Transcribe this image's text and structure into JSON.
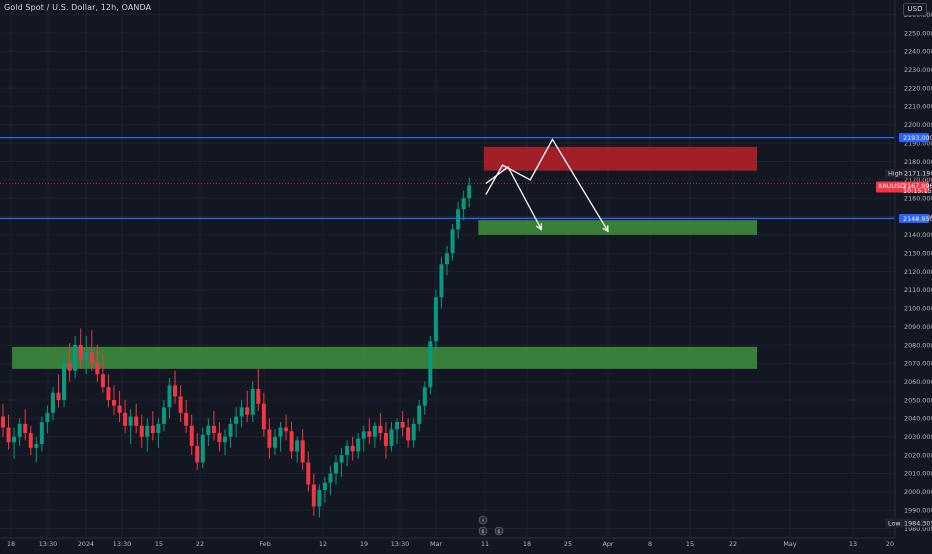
{
  "header": {
    "title": "Gold Spot / U.S. Dollar, 12h, OANDA",
    "currency": "USD"
  },
  "colors": {
    "background": "#131722",
    "up": "#089981",
    "down": "#f23645",
    "grid": "#1e222d",
    "level_line": "#2962ff",
    "supply_zone": "#b2202b",
    "demand_zone": "#3d8b3d",
    "arrow": "#ffffff"
  },
  "chart_data": {
    "type": "candlestick",
    "instrument": "XAUUSD",
    "timeframe": "12h",
    "y_ticks": [
      1980,
      1990,
      2000,
      2010,
      2020,
      2030,
      2040,
      2050,
      2060,
      2070,
      2080,
      2090,
      2100,
      2110,
      2120,
      2130,
      2140,
      2150,
      2160,
      2170,
      2180,
      2190,
      2200,
      2210,
      2220,
      2230,
      2240,
      2250,
      2260
    ],
    "ylim": [
      1977,
      2262
    ],
    "x_ticks": [
      "18",
      "13:30",
      "2024",
      "13:30",
      "15",
      "22",
      "Feb",
      "12",
      "19",
      "13:30",
      "Mar",
      "11",
      "18",
      "25",
      "Apr",
      "8",
      "15",
      "22",
      "May",
      "13",
      "20"
    ],
    "x_tick_kinds": [
      "day",
      "time",
      "year",
      "time",
      "day",
      "day",
      "month",
      "day",
      "day",
      "time",
      "month",
      "day",
      "day",
      "day",
      "month",
      "day",
      "day",
      "day",
      "month",
      "day",
      "day"
    ],
    "candles_ohlc": [
      [
        2041,
        2048,
        2030,
        2035
      ],
      [
        2035,
        2042,
        2023,
        2027
      ],
      [
        2027,
        2035,
        2018,
        2030
      ],
      [
        2030,
        2040,
        2025,
        2037
      ],
      [
        2037,
        2045,
        2028,
        2032
      ],
      [
        2032,
        2036,
        2020,
        2024
      ],
      [
        2024,
        2030,
        2016,
        2026
      ],
      [
        2026,
        2041,
        2022,
        2038
      ],
      [
        2038,
        2047,
        2032,
        2043
      ],
      [
        2043,
        2057,
        2039,
        2054
      ],
      [
        2054,
        2064,
        2046,
        2050
      ],
      [
        2050,
        2074,
        2046,
        2070
      ],
      [
        2070,
        2081,
        2060,
        2066
      ],
      [
        2066,
        2085,
        2062,
        2080
      ],
      [
        2080,
        2089,
        2067,
        2072
      ],
      [
        2072,
        2085,
        2064,
        2076
      ],
      [
        2076,
        2088,
        2066,
        2070
      ],
      [
        2070,
        2080,
        2060,
        2064
      ],
      [
        2064,
        2075,
        2054,
        2057
      ],
      [
        2057,
        2064,
        2046,
        2050
      ],
      [
        2050,
        2058,
        2042,
        2047
      ],
      [
        2047,
        2055,
        2038,
        2043
      ],
      [
        2043,
        2050,
        2032,
        2036
      ],
      [
        2036,
        2045,
        2026,
        2041
      ],
      [
        2041,
        2048,
        2032,
        2036
      ],
      [
        2036,
        2042,
        2024,
        2030
      ],
      [
        2030,
        2040,
        2022,
        2036
      ],
      [
        2036,
        2044,
        2028,
        2032
      ],
      [
        2032,
        2040,
        2024,
        2037
      ],
      [
        2037,
        2050,
        2033,
        2046
      ],
      [
        2046,
        2062,
        2040,
        2058
      ],
      [
        2058,
        2066,
        2048,
        2052
      ],
      [
        2052,
        2058,
        2038,
        2043
      ],
      [
        2043,
        2050,
        2032,
        2036
      ],
      [
        2036,
        2042,
        2020,
        2025
      ],
      [
        2025,
        2032,
        2012,
        2016
      ],
      [
        2016,
        2035,
        2013,
        2031
      ],
      [
        2031,
        2040,
        2025,
        2036
      ],
      [
        2036,
        2044,
        2028,
        2032
      ],
      [
        2032,
        2038,
        2022,
        2027
      ],
      [
        2027,
        2034,
        2020,
        2030
      ],
      [
        2030,
        2040,
        2024,
        2037
      ],
      [
        2037,
        2046,
        2030,
        2041
      ],
      [
        2041,
        2050,
        2035,
        2046
      ],
      [
        2046,
        2055,
        2038,
        2042
      ],
      [
        2042,
        2060,
        2038,
        2056
      ],
      [
        2056,
        2068,
        2044,
        2048
      ],
      [
        2048,
        2054,
        2030,
        2034
      ],
      [
        2034,
        2040,
        2018,
        2024
      ],
      [
        2024,
        2034,
        2020,
        2030
      ],
      [
        2030,
        2038,
        2022,
        2035
      ],
      [
        2035,
        2042,
        2028,
        2033
      ],
      [
        2033,
        2038,
        2018,
        2022
      ],
      [
        2022,
        2030,
        2016,
        2028
      ],
      [
        2028,
        2034,
        2012,
        2016
      ],
      [
        2016,
        2022,
        2000,
        2004
      ],
      [
        2004,
        2010,
        1987,
        1992
      ],
      [
        1992,
        2004,
        1986,
        2001
      ],
      [
        2001,
        2008,
        1994,
        2005
      ],
      [
        2005,
        2014,
        1998,
        2010
      ],
      [
        2010,
        2020,
        2004,
        2016
      ],
      [
        2016,
        2024,
        2008,
        2020
      ],
      [
        2020,
        2028,
        2014,
        2025
      ],
      [
        2025,
        2030,
        2017,
        2022
      ],
      [
        2022,
        2032,
        2018,
        2029
      ],
      [
        2029,
        2036,
        2022,
        2033
      ],
      [
        2033,
        2040,
        2026,
        2030
      ],
      [
        2030,
        2038,
        2024,
        2036
      ],
      [
        2036,
        2043,
        2028,
        2032
      ],
      [
        2032,
        2038,
        2018,
        2025
      ],
      [
        2025,
        2038,
        2022,
        2034
      ],
      [
        2034,
        2040,
        2026,
        2038
      ],
      [
        2038,
        2044,
        2030,
        2035
      ],
      [
        2035,
        2040,
        2024,
        2028
      ],
      [
        2028,
        2040,
        2024,
        2037
      ],
      [
        2037,
        2050,
        2033,
        2047
      ],
      [
        2047,
        2060,
        2042,
        2057
      ],
      [
        2057,
        2085,
        2053,
        2082
      ],
      [
        2082,
        2110,
        2078,
        2106
      ],
      [
        2106,
        2128,
        2100,
        2124
      ],
      [
        2124,
        2134,
        2118,
        2130
      ],
      [
        2130,
        2146,
        2126,
        2143
      ],
      [
        2143,
        2158,
        2138,
        2154
      ],
      [
        2154,
        2164,
        2148,
        2160
      ],
      [
        2160,
        2171,
        2155,
        2167
      ]
    ],
    "levels": [
      {
        "label": "2193.000",
        "price": 2193
      },
      {
        "label": "2148.950",
        "price": 2148.95
      }
    ],
    "zones": [
      {
        "kind": "supply",
        "top": 2188,
        "bottom": 2175,
        "start_index": 87,
        "end_index": 154
      },
      {
        "kind": "demand",
        "top": 2148,
        "bottom": 2140,
        "start_index": 86,
        "end_index": 154
      },
      {
        "kind": "demand",
        "top": 2079,
        "bottom": 2067,
        "start_index": 2,
        "end_index": 154
      }
    ],
    "scenario_paths": [
      {
        "points": [
          [
            87,
            2168
          ],
          [
            91,
            2177
          ],
          [
            97,
            2143
          ]
        ],
        "arrow_end": true
      },
      {
        "points": [
          [
            87,
            2162
          ],
          [
            90,
            2178
          ],
          [
            95,
            2170
          ],
          [
            99,
            2192
          ],
          [
            109,
            2142
          ]
        ],
        "arrow_end": true
      }
    ],
    "price_labels": {
      "high": {
        "name": "High",
        "value": "2171.190"
      },
      "current": {
        "name": "XAUUSD",
        "value": "2167.996",
        "countdown": "10:15:15"
      },
      "low": {
        "name": "Low",
        "value": "1984.305"
      },
      "top": "2260.000"
    }
  }
}
